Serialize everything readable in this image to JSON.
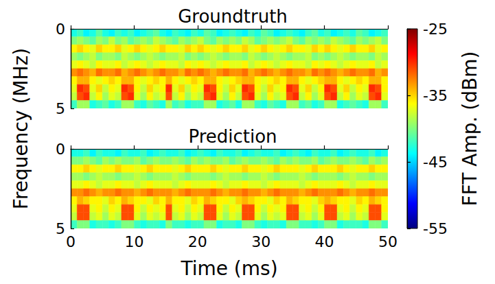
{
  "chart_data": {
    "type": "heatmap",
    "xlabel": "Time (ms)",
    "ylabel": "Frequency (MHz)",
    "xlim": [
      0,
      50
    ],
    "xticks": [
      0,
      10,
      20,
      30,
      40,
      50
    ],
    "ylim": [
      0,
      5
    ],
    "yticks": [
      0,
      5
    ],
    "x": [
      0.5,
      1.5,
      2.5,
      3.5,
      4.5,
      5.5,
      6.5,
      7.5,
      8.5,
      9.5,
      10.5,
      11.5,
      12.5,
      13.5,
      14.5,
      15.5,
      16.5,
      17.5,
      18.5,
      19.5,
      20.5,
      21.5,
      22.5,
      23.5,
      24.5,
      25.5,
      26.5,
      27.5,
      28.5,
      29.5,
      30.5,
      31.5,
      32.5,
      33.5,
      34.5,
      35.5,
      36.5,
      37.5,
      38.5,
      39.5,
      40.5,
      41.5,
      42.5,
      43.5,
      44.5,
      45.5,
      46.5,
      47.5,
      48.5,
      49.5
    ],
    "y": [
      0.25,
      0.75,
      1.25,
      1.75,
      2.25,
      2.75,
      3.25,
      3.75,
      4.25,
      4.75
    ],
    "colorbar": {
      "label": "FFT Amp. (dBm)",
      "range": [
        -55,
        -25
      ],
      "ticks": [
        -55,
        -45,
        -35,
        -25
      ]
    },
    "panels": [
      {
        "title": "Groundtruth",
        "cells": [
          [
            -43,
            -42,
            -44,
            -43,
            -41,
            -43,
            -44,
            -42,
            -43,
            -42,
            -44,
            -43,
            -42,
            -41,
            -43,
            -44,
            -42,
            -43,
            -44,
            -42,
            -43,
            -41,
            -42,
            -44,
            -43,
            -42,
            -43,
            -44,
            -42,
            -43,
            -41,
            -42,
            -44,
            -43,
            -42,
            -43,
            -44,
            -42,
            -41,
            -43,
            -42,
            -44,
            -43,
            -42,
            -43,
            -41,
            -42,
            -44,
            -43,
            -42
          ],
          [
            -40,
            -39,
            -40,
            -41,
            -39,
            -40,
            -38,
            -40,
            -39,
            -41,
            -40,
            -39,
            -40,
            -38,
            -39,
            -40,
            -41,
            -39,
            -40,
            -39,
            -38,
            -40,
            -41,
            -39,
            -40,
            -39,
            -40,
            -38,
            -39,
            -41,
            -40,
            -39,
            -40,
            -39,
            -38,
            -40,
            -41,
            -39,
            -40,
            -39,
            -40,
            -38,
            -39,
            -40,
            -41,
            -39,
            -40,
            -39,
            -38,
            -40
          ],
          [
            -36,
            -35,
            -36,
            -37,
            -35,
            -36,
            -36,
            -35,
            -37,
            -36,
            -35,
            -36,
            -37,
            -36,
            -35,
            -36,
            -36,
            -37,
            -35,
            -36,
            -35,
            -36,
            -37,
            -36,
            -35,
            -36,
            -36,
            -35,
            -37,
            -36,
            -35,
            -36,
            -37,
            -36,
            -35,
            -36,
            -36,
            -37,
            -35,
            -36,
            -35,
            -36,
            -37,
            -36,
            -35,
            -36,
            -36,
            -35,
            -37,
            -36
          ],
          [
            -39,
            -40,
            -39,
            -38,
            -40,
            -39,
            -39,
            -40,
            -38,
            -39,
            -40,
            -39,
            -38,
            -39,
            -40,
            -39,
            -39,
            -38,
            -40,
            -39,
            -40,
            -39,
            -38,
            -39,
            -40,
            -39,
            -39,
            -40,
            -38,
            -39,
            -40,
            -39,
            -38,
            -39,
            -40,
            -39,
            -39,
            -38,
            -40,
            -39,
            -40,
            -39,
            -38,
            -39,
            -40,
            -39,
            -39,
            -40,
            -38,
            -39
          ],
          [
            -37,
            -36,
            -37,
            -38,
            -36,
            -37,
            -37,
            -36,
            -38,
            -37,
            -36,
            -37,
            -38,
            -37,
            -36,
            -37,
            -37,
            -38,
            -36,
            -37,
            -36,
            -37,
            -38,
            -37,
            -36,
            -37,
            -37,
            -36,
            -38,
            -37,
            -36,
            -37,
            -38,
            -37,
            -36,
            -37,
            -37,
            -38,
            -36,
            -37,
            -36,
            -37,
            -38,
            -37,
            -36,
            -37,
            -37,
            -36,
            -38,
            -37
          ],
          [
            -33,
            -32,
            -33,
            -34,
            -32,
            -33,
            -33,
            -32,
            -34,
            -33,
            -32,
            -33,
            -34,
            -33,
            -32,
            -33,
            -33,
            -34,
            -32,
            -33,
            -32,
            -33,
            -34,
            -33,
            -32,
            -33,
            -33,
            -32,
            -34,
            -33,
            -32,
            -33,
            -34,
            -33,
            -32,
            -33,
            -33,
            -34,
            -32,
            -33,
            -32,
            -33,
            -34,
            -33,
            -32,
            -33,
            -33,
            -32,
            -34,
            -33
          ],
          [
            -36,
            -34,
            -34,
            -36,
            -37,
            -36,
            -35,
            -36,
            -34,
            -34,
            -36,
            -37,
            -36,
            -35,
            -36,
            -34,
            -36,
            -37,
            -36,
            -35,
            -36,
            -34,
            -34,
            -36,
            -37,
            -36,
            -35,
            -34,
            -34,
            -36,
            -37,
            -36,
            -35,
            -36,
            -34,
            -34,
            -36,
            -37,
            -36,
            -35,
            -34,
            -34,
            -36,
            -37,
            -36,
            -35,
            -36,
            -34,
            -34,
            -36
          ],
          [
            -37,
            -30,
            -31,
            -37,
            -35,
            -38,
            -36,
            -37,
            -30,
            -31,
            -36,
            -38,
            -35,
            -37,
            -36,
            -30,
            -37,
            -35,
            -38,
            -36,
            -37,
            -30,
            -31,
            -36,
            -38,
            -35,
            -37,
            -30,
            -31,
            -36,
            -38,
            -35,
            -37,
            -36,
            -30,
            -31,
            -37,
            -35,
            -38,
            -36,
            -30,
            -31,
            -37,
            -35,
            -38,
            -36,
            -37,
            -30,
            -31,
            -36
          ],
          [
            -38,
            -31,
            -30,
            -38,
            -36,
            -39,
            -37,
            -38,
            -31,
            -30,
            -37,
            -39,
            -36,
            -38,
            -37,
            -31,
            -38,
            -36,
            -39,
            -37,
            -38,
            -31,
            -30,
            -37,
            -39,
            -36,
            -38,
            -31,
            -30,
            -37,
            -39,
            -36,
            -38,
            -37,
            -31,
            -30,
            -38,
            -36,
            -39,
            -37,
            -31,
            -30,
            -38,
            -36,
            -39,
            -37,
            -38,
            -31,
            -30,
            -37
          ],
          [
            -42,
            -39,
            -39,
            -43,
            -42,
            -41,
            -43,
            -42,
            -39,
            -39,
            -42,
            -43,
            -41,
            -42,
            -43,
            -39,
            -42,
            -41,
            -43,
            -42,
            -42,
            -39,
            -39,
            -43,
            -42,
            -41,
            -43,
            -39,
            -39,
            -42,
            -43,
            -41,
            -42,
            -43,
            -39,
            -39,
            -42,
            -41,
            -43,
            -42,
            -39,
            -39,
            -43,
            -42,
            -41,
            -42,
            -43,
            -39,
            -39,
            -42
          ]
        ]
      },
      {
        "title": "Prediction",
        "cells": [
          [
            -43,
            -43,
            -42,
            -44,
            -42,
            -43,
            -43,
            -44,
            -42,
            -43,
            -43,
            -42,
            -44,
            -43,
            -42,
            -43,
            -43,
            -42,
            -44,
            -43,
            -42,
            -43,
            -44,
            -42,
            -43,
            -43,
            -42,
            -44,
            -43,
            -42,
            -43,
            -43,
            -42,
            -44,
            -43,
            -42,
            -43,
            -44,
            -42,
            -43,
            -43,
            -42,
            -44,
            -43,
            -42,
            -43,
            -43,
            -42,
            -44,
            -43
          ],
          [
            -40,
            -40,
            -39,
            -40,
            -41,
            -39,
            -40,
            -39,
            -40,
            -40,
            -39,
            -41,
            -40,
            -39,
            -40,
            -40,
            -39,
            -40,
            -41,
            -39,
            -40,
            -39,
            -40,
            -40,
            -39,
            -41,
            -40,
            -39,
            -40,
            -40,
            -39,
            -40,
            -41,
            -39,
            -40,
            -39,
            -40,
            -40,
            -39,
            -41,
            -40,
            -39,
            -40,
            -40,
            -39,
            -40,
            -41,
            -39,
            -40,
            -39
          ],
          [
            -36,
            -36,
            -35,
            -36,
            -37,
            -36,
            -36,
            -35,
            -36,
            -36,
            -37,
            -36,
            -35,
            -36,
            -36,
            -36,
            -37,
            -36,
            -35,
            -36,
            -36,
            -36,
            -35,
            -36,
            -37,
            -36,
            -36,
            -35,
            -36,
            -36,
            -37,
            -36,
            -35,
            -36,
            -36,
            -36,
            -37,
            -36,
            -35,
            -36,
            -36,
            -36,
            -35,
            -36,
            -37,
            -36,
            -36,
            -35,
            -36,
            -36
          ],
          [
            -39,
            -39,
            -40,
            -39,
            -38,
            -39,
            -39,
            -40,
            -39,
            -39,
            -38,
            -39,
            -40,
            -39,
            -39,
            -39,
            -38,
            -39,
            -40,
            -39,
            -39,
            -39,
            -40,
            -39,
            -38,
            -39,
            -39,
            -40,
            -39,
            -39,
            -38,
            -39,
            -40,
            -39,
            -39,
            -39,
            -38,
            -39,
            -40,
            -39,
            -39,
            -39,
            -40,
            -39,
            -38,
            -39,
            -39,
            -40,
            -39,
            -39
          ],
          [
            -37,
            -37,
            -36,
            -37,
            -38,
            -37,
            -37,
            -36,
            -37,
            -37,
            -38,
            -37,
            -36,
            -37,
            -37,
            -37,
            -38,
            -37,
            -36,
            -37,
            -37,
            -37,
            -36,
            -37,
            -38,
            -37,
            -37,
            -36,
            -37,
            -37,
            -38,
            -37,
            -36,
            -37,
            -37,
            -37,
            -38,
            -37,
            -36,
            -37,
            -37,
            -37,
            -36,
            -37,
            -38,
            -37,
            -37,
            -36,
            -37,
            -37
          ],
          [
            -33,
            -33,
            -32,
            -33,
            -34,
            -33,
            -33,
            -32,
            -33,
            -33,
            -34,
            -33,
            -32,
            -33,
            -33,
            -33,
            -34,
            -33,
            -32,
            -33,
            -33,
            -33,
            -32,
            -33,
            -34,
            -33,
            -33,
            -32,
            -33,
            -33,
            -34,
            -33,
            -32,
            -33,
            -33,
            -33,
            -34,
            -33,
            -32,
            -33,
            -33,
            -33,
            -32,
            -33,
            -34,
            -33,
            -33,
            -32,
            -33,
            -33
          ],
          [
            -36,
            -34,
            -35,
            -36,
            -36,
            -37,
            -35,
            -36,
            -34,
            -35,
            -36,
            -36,
            -37,
            -35,
            -36,
            -34,
            -36,
            -36,
            -37,
            -35,
            -36,
            -34,
            -35,
            -36,
            -36,
            -37,
            -35,
            -34,
            -35,
            -36,
            -36,
            -37,
            -35,
            -36,
            -34,
            -35,
            -36,
            -36,
            -37,
            -35,
            -34,
            -35,
            -36,
            -36,
            -37,
            -35,
            -36,
            -34,
            -35,
            -36
          ],
          [
            -37,
            -31,
            -31,
            -37,
            -36,
            -38,
            -36,
            -37,
            -31,
            -31,
            -36,
            -38,
            -36,
            -37,
            -36,
            -31,
            -37,
            -36,
            -38,
            -36,
            -37,
            -31,
            -31,
            -36,
            -38,
            -36,
            -37,
            -31,
            -31,
            -36,
            -38,
            -36,
            -37,
            -36,
            -31,
            -31,
            -37,
            -36,
            -38,
            -36,
            -31,
            -31,
            -37,
            -36,
            -38,
            -36,
            -37,
            -31,
            -31,
            -36
          ],
          [
            -38,
            -31,
            -31,
            -38,
            -37,
            -39,
            -37,
            -38,
            -31,
            -31,
            -37,
            -39,
            -37,
            -38,
            -37,
            -31,
            -38,
            -37,
            -39,
            -37,
            -38,
            -31,
            -31,
            -37,
            -39,
            -37,
            -38,
            -31,
            -31,
            -37,
            -39,
            -37,
            -38,
            -37,
            -31,
            -31,
            -38,
            -37,
            -39,
            -37,
            -31,
            -31,
            -38,
            -37,
            -39,
            -37,
            -38,
            -31,
            -31,
            -37
          ],
          [
            -42,
            -40,
            -40,
            -43,
            -42,
            -42,
            -43,
            -42,
            -40,
            -40,
            -42,
            -43,
            -42,
            -42,
            -43,
            -40,
            -42,
            -42,
            -43,
            -42,
            -42,
            -40,
            -40,
            -43,
            -42,
            -42,
            -43,
            -40,
            -40,
            -42,
            -43,
            -42,
            -42,
            -43,
            -40,
            -40,
            -42,
            -42,
            -43,
            -42,
            -40,
            -40,
            -43,
            -42,
            -42,
            -42,
            -43,
            -40,
            -40,
            -42
          ]
        ]
      }
    ]
  }
}
